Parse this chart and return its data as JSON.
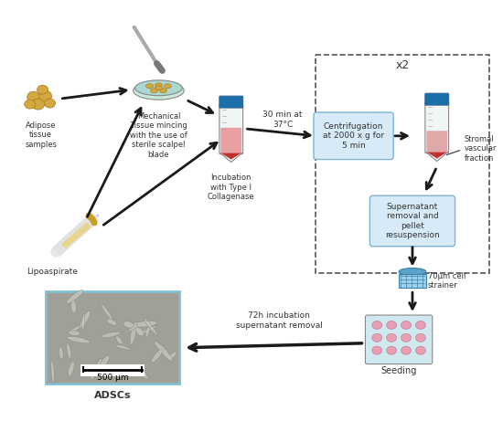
{
  "background_color": "#ffffff",
  "labels": {
    "adipose": "Adipose\ntissue\nsamples",
    "mechanical": "Mechanical\nTissue mincing\nwith the use of\nsterile scalpel\nblade",
    "incubation_tube": "Incubation\nwith Type I\nCollagenase",
    "temp": "30 min at\n37°C",
    "centrifugation": "Centrifugation\nat 2000 x g for\n5 min",
    "stromal": "Stromal\nvascular\nfraction",
    "supernatant": "Supernatant\nremoval and\npellet\nresuspension",
    "cell_strainer": "70μm cell\nstrainer",
    "seeding": "Seeding",
    "adsc": "ADSCs",
    "lipoaspirate": "Lipoaspirate",
    "x2": "x2",
    "incubation_72h": "72h incubation\nsupernatant removal",
    "scale_bar": "500 μm"
  },
  "colors": {
    "arrow": "#1a1a1a",
    "tube_body": "#f0f5f0",
    "tube_cap_blue": "#1a6fa8",
    "tube_liquid_pink": "#e8a0a0",
    "tube_liquid_red": "#c0302a",
    "box_fill": "#d6eaf8",
    "box_stroke": "#7fb3d3",
    "dashed_box": "#555555",
    "cell_strainer_blue": "#5ba3c9",
    "well_plate_blue": "#a8d4e8",
    "well_pink": "#e8a0b0",
    "adsc_image_border": "#80c0d0",
    "adsc_image_bg": "#b0b0a8",
    "adipose_fill": "#d4a840",
    "petri_fill": "#a8d8d0",
    "syringe_gold": "#c8a020",
    "text_dark": "#333333"
  }
}
